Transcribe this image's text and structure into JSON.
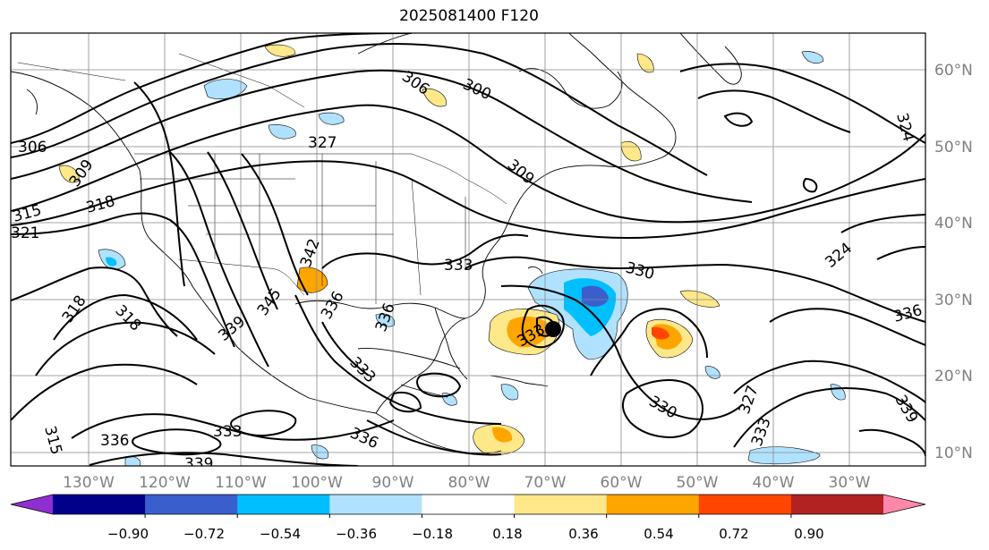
{
  "title": "2025081400 F120",
  "lat_labels": [
    "60°N",
    "50°N",
    "40°N",
    "30°N",
    "20°N",
    "10°N"
  ],
  "lon_labels": [
    "130°W",
    "120°W",
    "110°W",
    "100°W",
    "90°W",
    "80°W",
    "70°W",
    "60°W",
    "50°W",
    "40°W",
    "30°W"
  ],
  "contour_labels": [
    "306",
    "300",
    "327",
    "306",
    "309",
    "318",
    "315",
    "321",
    "342",
    "336",
    "333",
    "309",
    "330",
    "324",
    "318",
    "318",
    "345",
    "339",
    "333",
    "336",
    "333",
    "330",
    "327",
    "333",
    "339",
    "336",
    "324",
    "315",
    "336",
    "333",
    "339",
    "336"
  ],
  "colorbar": {
    "colors": [
      "#8e2fd1",
      "#00008b",
      "#3a5fcd",
      "#00bfff",
      "#b0e2ff",
      "#ffffff",
      "#ffe88a",
      "#ffa500",
      "#ff4500",
      "#b22222",
      "#ff88aa"
    ],
    "labels": [
      "−0.90",
      "−0.72",
      "−0.54",
      "−0.36",
      "−0.18",
      "0.18",
      "0.36",
      "0.54",
      "0.72",
      "0.90"
    ]
  }
}
